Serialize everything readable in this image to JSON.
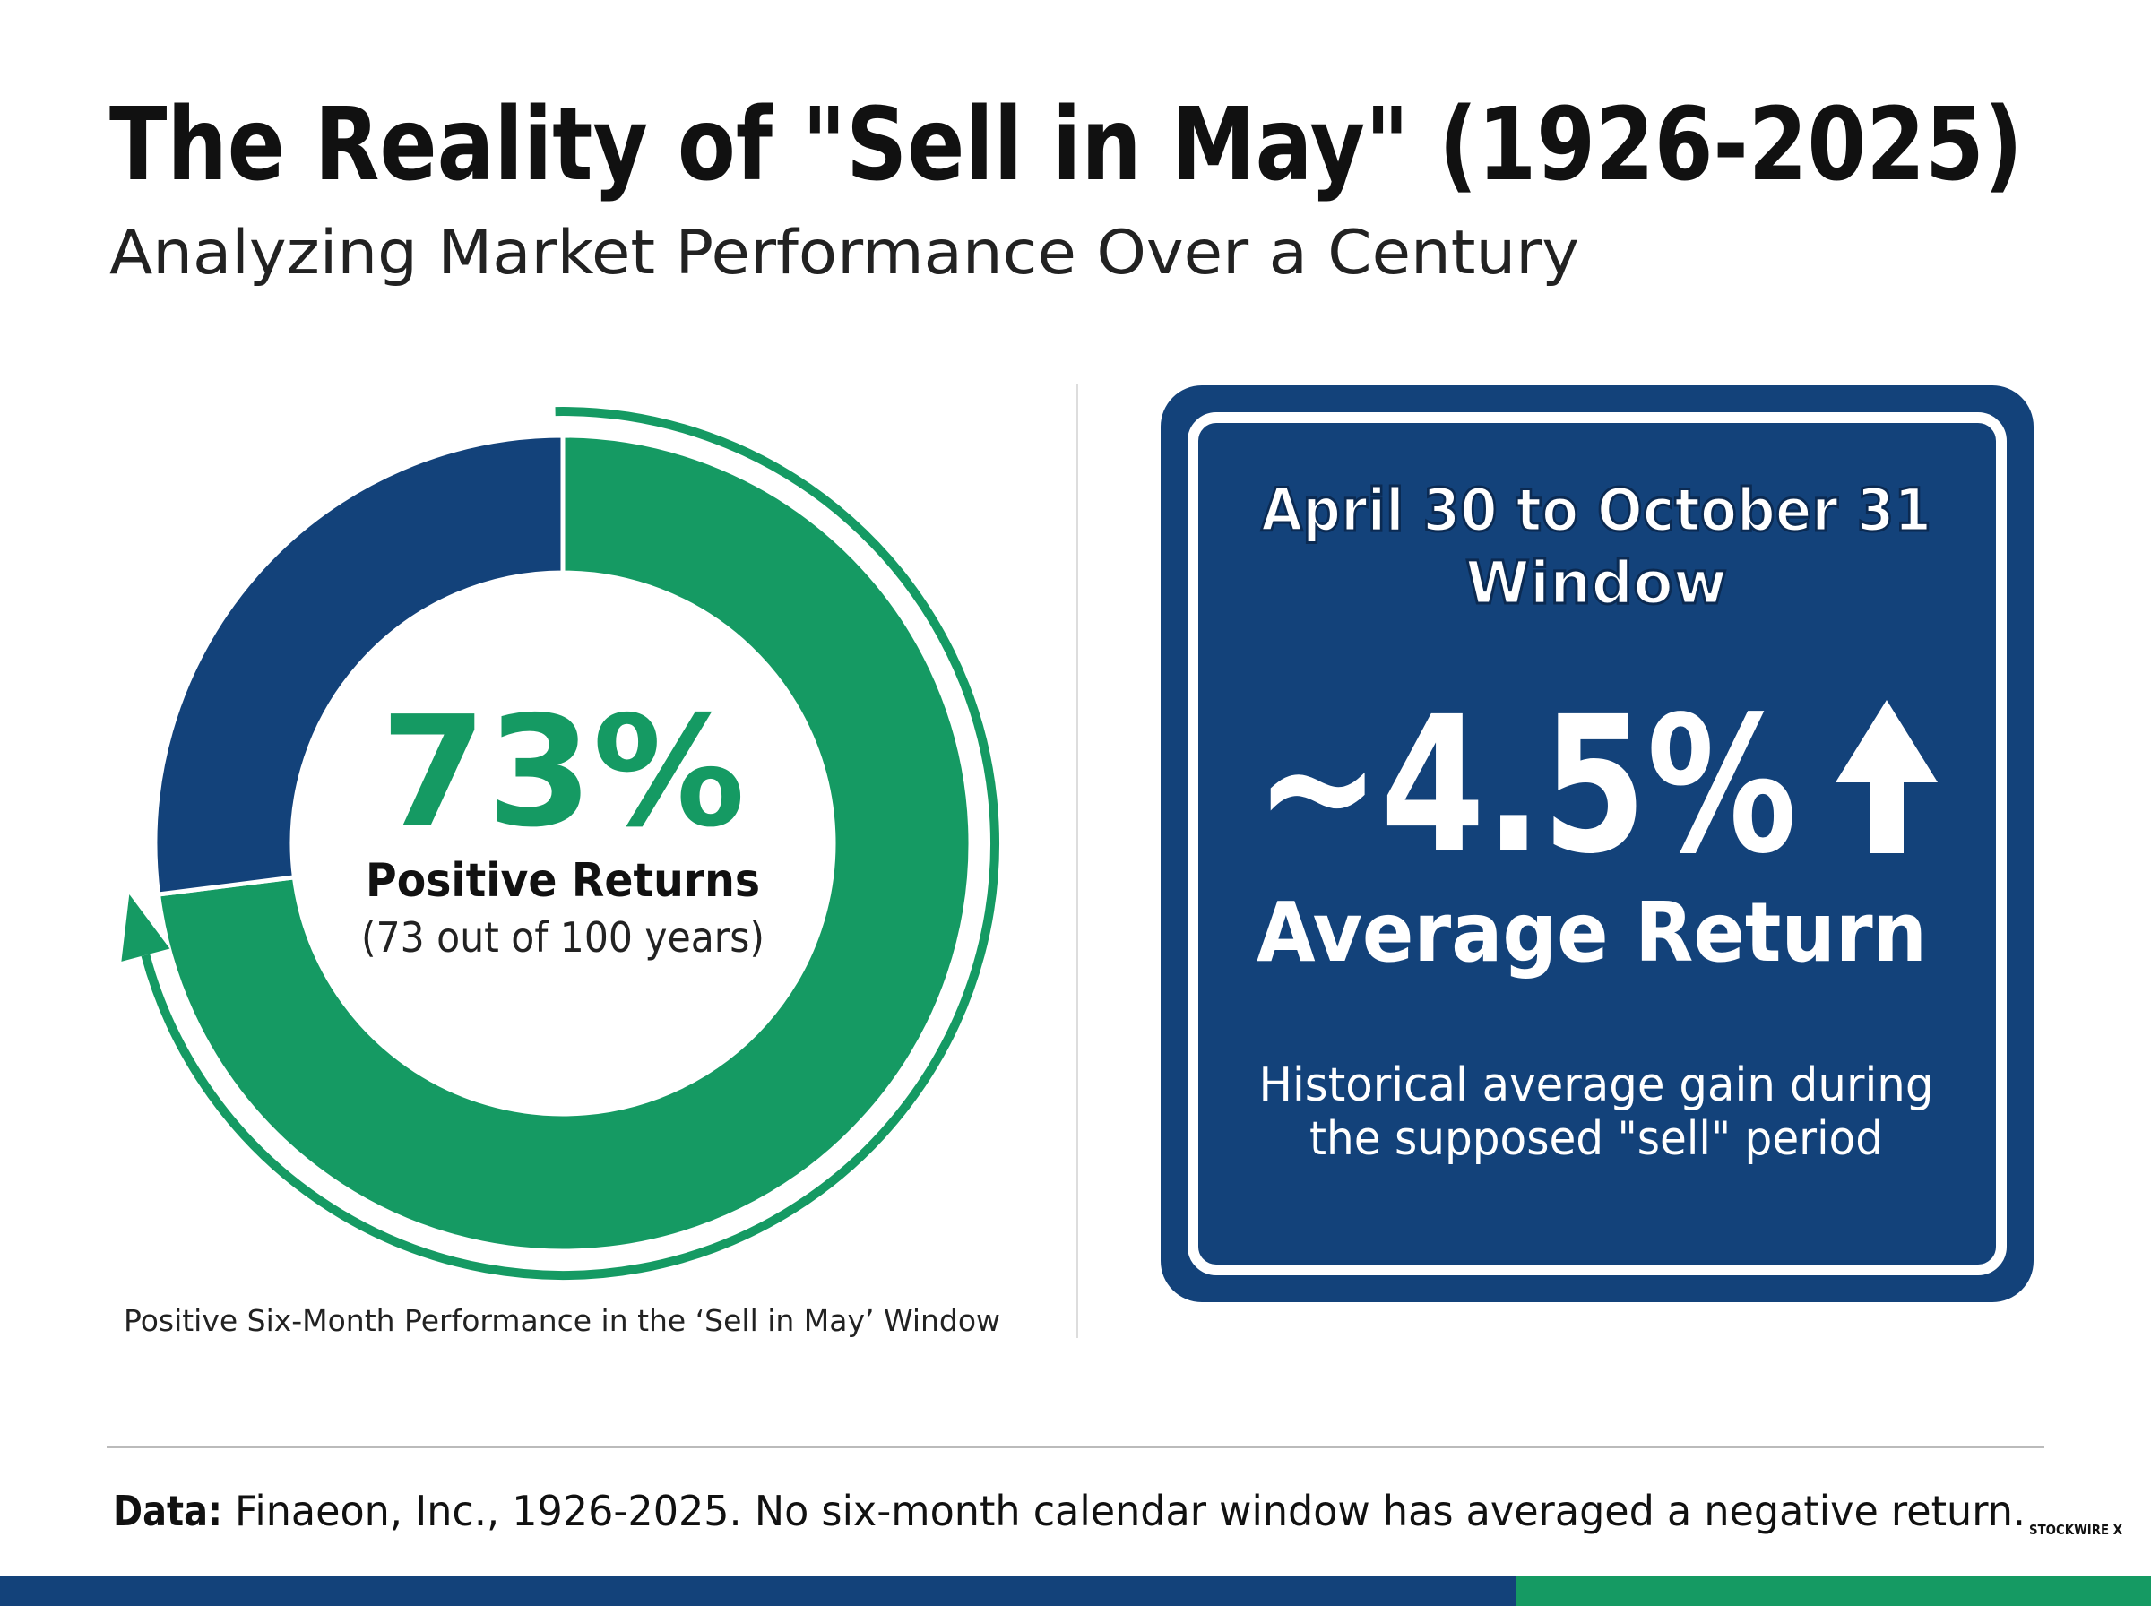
{
  "header": {
    "title": "The Reality of \"Sell in May\" (1926-2025)",
    "subtitle": "Analyzing Market Performance Over a Century"
  },
  "chart_data": {
    "type": "donut",
    "values": [
      73,
      27
    ],
    "colors": [
      "#159a63",
      "#13427a"
    ],
    "value_labels": [
      "73%",
      null
    ],
    "center_label": "Positive Returns",
    "center_sublabel": "(73 out of 100 years)",
    "caption": "Positive Six-Month Performance in the ‘Sell in May’ Window"
  },
  "callout": {
    "title_lines": [
      "April 30 to October 31",
      "Window"
    ],
    "value": "~4.5%",
    "label": "Average Return",
    "description_lines": [
      "Historical average gain during",
      "the supposed \"sell\" period"
    ]
  },
  "footer": {
    "source_label": "Data:",
    "source_text": "Finaeon, Inc., 1926-2025. No six-month calendar window has averaged a negative return.",
    "logo": "STOCKWIRE X"
  }
}
